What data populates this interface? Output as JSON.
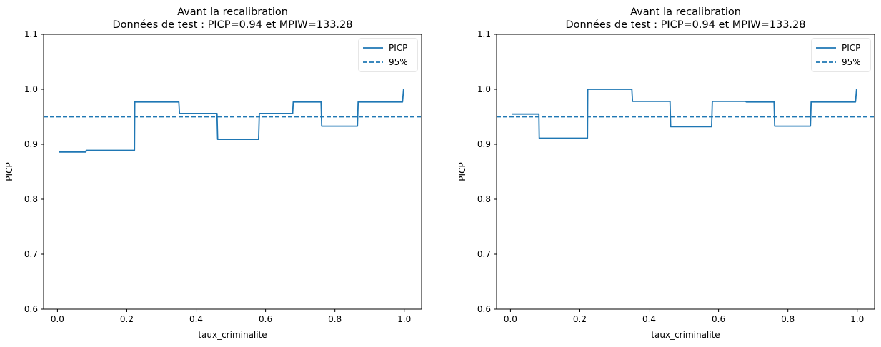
{
  "chart_data": [
    {
      "type": "line",
      "title": [
        "Avant la recalibration",
        "Données de test : PICP=0.94 et MPIW=133.28"
      ],
      "xlabel": "taux_criminalite",
      "ylabel": "PICP",
      "xlim": [
        -0.04,
        1.05
      ],
      "ylim": [
        0.6,
        1.1
      ],
      "xticks": [
        0.0,
        0.2,
        0.4,
        0.6,
        0.8,
        1.0
      ],
      "xtick_labels": [
        "0.0",
        "0.2",
        "0.4",
        "0.6",
        "0.8",
        "1.0"
      ],
      "yticks": [
        0.6,
        0.7,
        0.8,
        0.9,
        1.0,
        1.1
      ],
      "ytick_labels": [
        "0.6",
        "0.7",
        "0.8",
        "0.9",
        "1.0",
        "1.1"
      ],
      "grid": false,
      "legend_position": "upper right",
      "series": [
        {
          "name": "PICP",
          "style": "solid",
          "color": "#1f77b4",
          "x": [
            0.005,
            0.082,
            0.083,
            0.222,
            0.223,
            0.35,
            0.352,
            0.46,
            0.462,
            0.58,
            0.582,
            0.678,
            0.68,
            0.76,
            0.762,
            0.865,
            0.867,
            0.995,
            0.998
          ],
          "y": [
            0.886,
            0.886,
            0.889,
            0.889,
            0.977,
            0.977,
            0.956,
            0.956,
            0.909,
            0.909,
            0.956,
            0.956,
            0.977,
            0.977,
            0.933,
            0.933,
            0.977,
            0.977,
            1.0
          ]
        },
        {
          "name": "95%",
          "style": "dashed",
          "color": "#1f77b4",
          "y": 0.95
        }
      ]
    },
    {
      "type": "line",
      "title": [
        "Avant la recalibration",
        "Données de test : PICP=0.94 et MPIW=133.28"
      ],
      "xlabel": "taux_criminalite",
      "ylabel": "PICP",
      "xlim": [
        -0.04,
        1.05
      ],
      "ylim": [
        0.6,
        1.1
      ],
      "xticks": [
        0.0,
        0.2,
        0.4,
        0.6,
        0.8,
        1.0
      ],
      "xtick_labels": [
        "0.0",
        "0.2",
        "0.4",
        "0.6",
        "0.8",
        "1.0"
      ],
      "yticks": [
        0.6,
        0.7,
        0.8,
        0.9,
        1.0,
        1.1
      ],
      "ytick_labels": [
        "0.6",
        "0.7",
        "0.8",
        "0.9",
        "1.0",
        "1.1"
      ],
      "grid": false,
      "legend_position": "upper right",
      "series": [
        {
          "name": "PICP",
          "style": "solid",
          "color": "#1f77b4",
          "x": [
            0.005,
            0.082,
            0.083,
            0.222,
            0.223,
            0.35,
            0.352,
            0.46,
            0.462,
            0.58,
            0.582,
            0.678,
            0.68,
            0.76,
            0.762,
            0.865,
            0.867,
            0.995,
            0.998
          ],
          "y": [
            0.955,
            0.955,
            0.911,
            0.911,
            1.0,
            1.0,
            0.978,
            0.978,
            0.932,
            0.932,
            0.978,
            0.978,
            0.977,
            0.977,
            0.933,
            0.933,
            0.977,
            0.977,
            1.0
          ]
        },
        {
          "name": "95%",
          "style": "dashed",
          "color": "#1f77b4",
          "y": 0.95
        }
      ]
    }
  ]
}
